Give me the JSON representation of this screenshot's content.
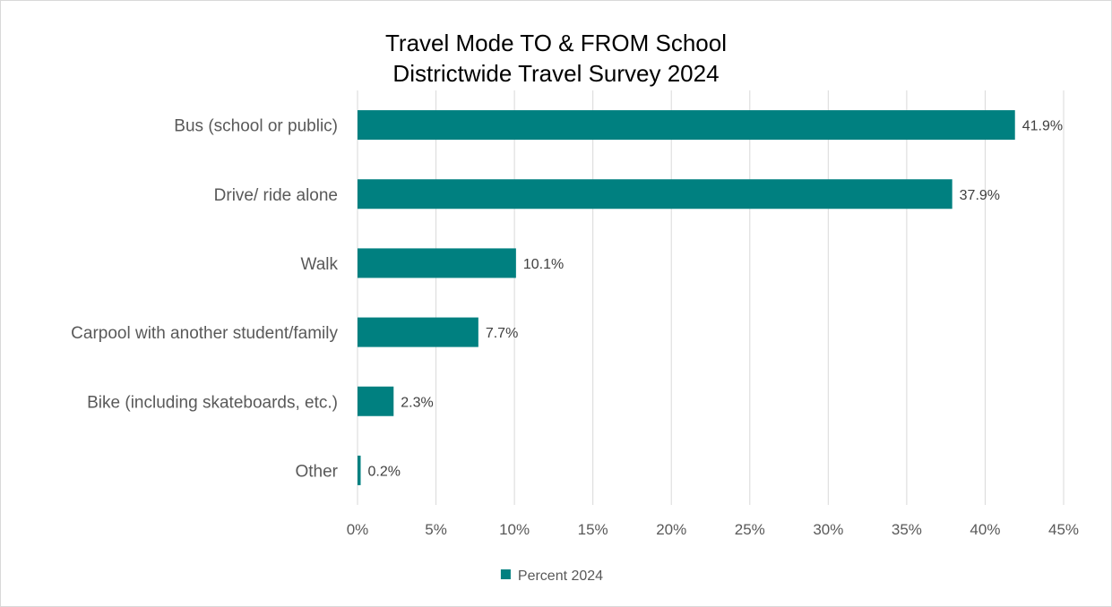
{
  "chart_data": {
    "type": "bar",
    "orientation": "horizontal",
    "title": "Travel Mode TO & FROM School",
    "subtitle": "Districtwide Travel Survey 2024",
    "categories": [
      "Bus (school or public)",
      "Drive/ ride alone",
      "Walk",
      "Carpool  with another student/family",
      "Bike (including skateboards, etc.)",
      "Other"
    ],
    "series": [
      {
        "name": "Percent 2024",
        "values": [
          41.9,
          37.9,
          10.1,
          7.7,
          2.3,
          0.2
        ],
        "labels": [
          "41.9%",
          "37.9%",
          "10.1%",
          "7.7%",
          "2.3%",
          "0.2%"
        ],
        "color": "#008080"
      }
    ],
    "xlim": [
      0,
      45
    ],
    "xticks": [
      0,
      5,
      10,
      15,
      20,
      25,
      30,
      35,
      40,
      45
    ],
    "xtick_labels": [
      "0%",
      "5%",
      "10%",
      "15%",
      "20%",
      "25%",
      "30%",
      "35%",
      "40%",
      "45%"
    ],
    "grid": "vertical",
    "gridline_color": "#d9d9d9",
    "legend_position": "bottom"
  }
}
